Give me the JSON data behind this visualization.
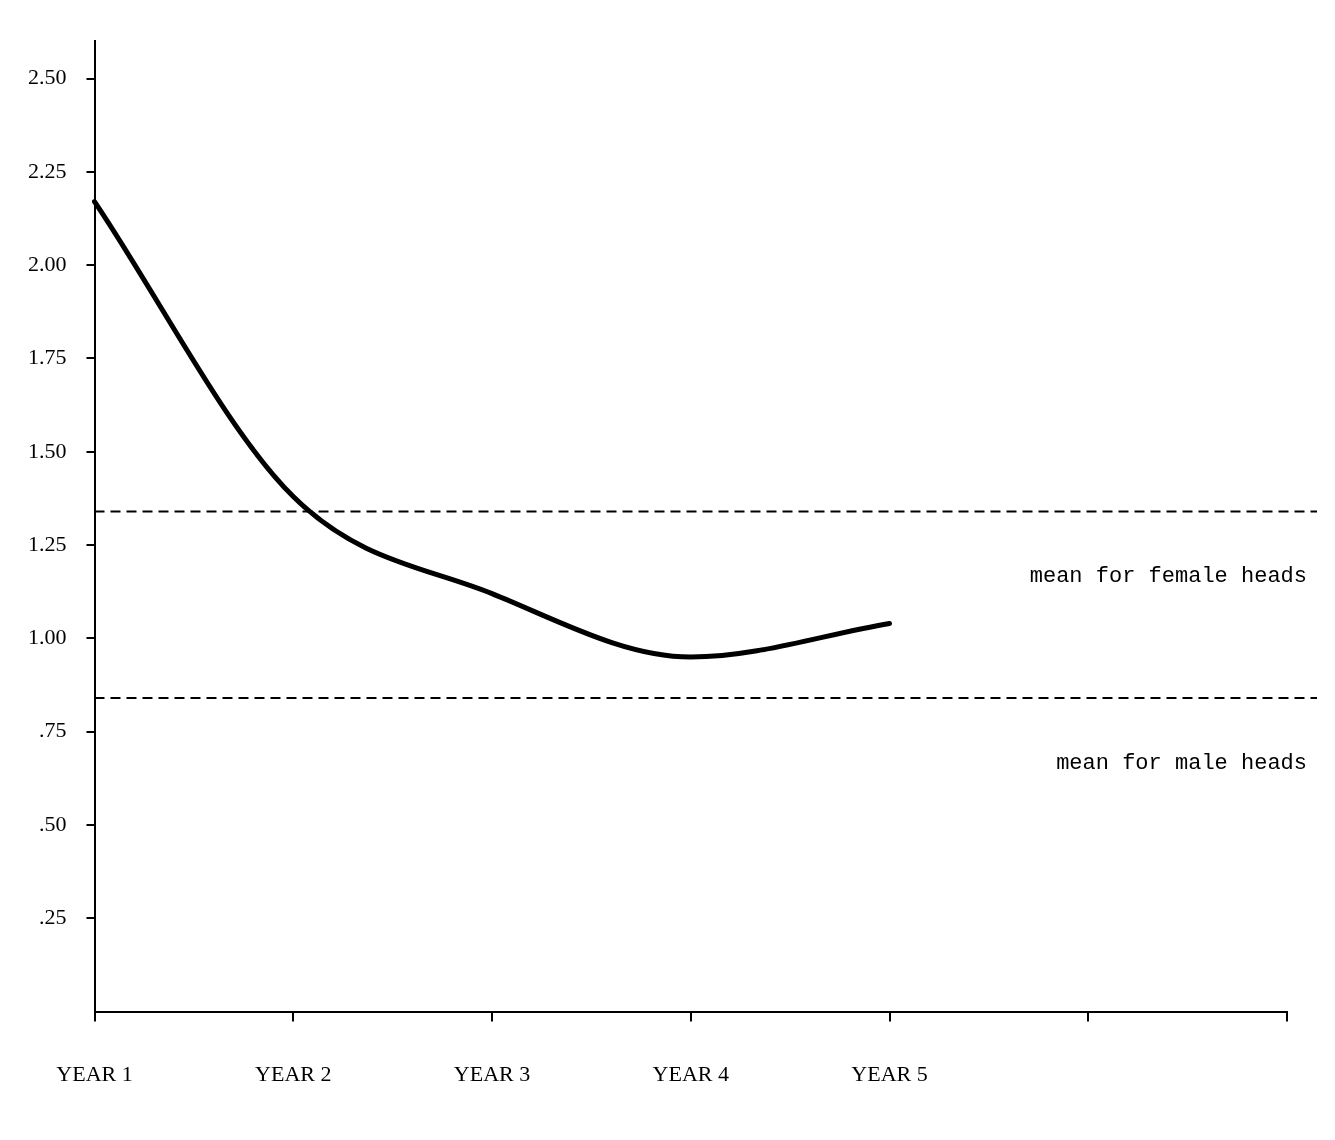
{
  "chart_data": {
    "type": "line",
    "categories": [
      "YEAR 1",
      "YEAR 2",
      "YEAR 3",
      "YEAR 4",
      "YEAR 5",
      null,
      null
    ],
    "series": [
      {
        "color": "#000000",
        "values": [
          2.17,
          1.38,
          1.12,
          0.95,
          1.04,
          null,
          null
        ]
      }
    ],
    "ylim": [
      0,
      2.6
    ],
    "yticks": [
      {
        "value": 0.25,
        "label": ".25"
      },
      {
        "value": 0.5,
        "label": ".50"
      },
      {
        "value": 0.75,
        "label": ".75"
      },
      {
        "value": 1,
        "label": "1.00"
      },
      {
        "value": 1.25,
        "label": "1.25"
      },
      {
        "value": 1.5,
        "label": "1.50"
      },
      {
        "value": 1.75,
        "label": "1.75"
      },
      {
        "value": 2,
        "label": "2.00"
      },
      {
        "value": 2.25,
        "label": "2.25"
      },
      {
        "value": 2.5,
        "label": "2.50"
      }
    ],
    "ref_lines": [
      {
        "axis": "y",
        "value": 1.34,
        "label": "mean for female heads",
        "color": "#000000",
        "line_style": "dashed"
      },
      {
        "axis": "y",
        "value": 0.84,
        "label": "mean for male heads",
        "color": "#000000",
        "line_style": "dashed"
      }
    ],
    "grid": false,
    "legend": false,
    "marker": "none",
    "line_style": "solid"
  }
}
